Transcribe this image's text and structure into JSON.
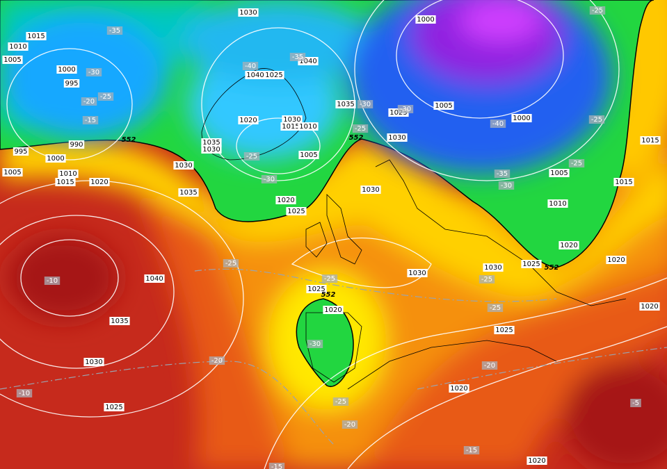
{
  "pressure_labels": [
    "1030",
    "1015",
    "1010",
    "1005",
    "1000",
    "995",
    "1040",
    "1040",
    "1025",
    "1000",
    "1005",
    "1000",
    "1035",
    "1025",
    "1030",
    "1020",
    "1015",
    "1010",
    "1035",
    "1030",
    "1005",
    "1030",
    "990",
    "995",
    "1000",
    "1005",
    "1010",
    "1015",
    "1020",
    "1030",
    "1035",
    "1030",
    "1020",
    "1025",
    "1005",
    "1015",
    "1015",
    "1010",
    "1020",
    "1020",
    "1025",
    "1030",
    "1030",
    "1040",
    "1035",
    "1030",
    "1025",
    "1025",
    "1020",
    "1025",
    "1020",
    "1020",
    "1020"
  ],
  "temperature_labels": [
    "-35",
    "-30",
    "-25",
    "-20",
    "-15",
    "-40",
    "-35",
    "-30",
    "-30",
    "-25",
    "-25",
    "-30",
    "-25",
    "-25",
    "-25",
    "-40",
    "-35",
    "-30",
    "-10",
    "-25",
    "-25",
    "-25",
    "-25",
    "-30",
    "-20",
    "-20",
    "-25",
    "-20",
    "-15",
    "-10",
    "-5",
    "-15"
  ],
  "thickness_labels": [
    "552",
    "552",
    "552",
    "552"
  ]
}
